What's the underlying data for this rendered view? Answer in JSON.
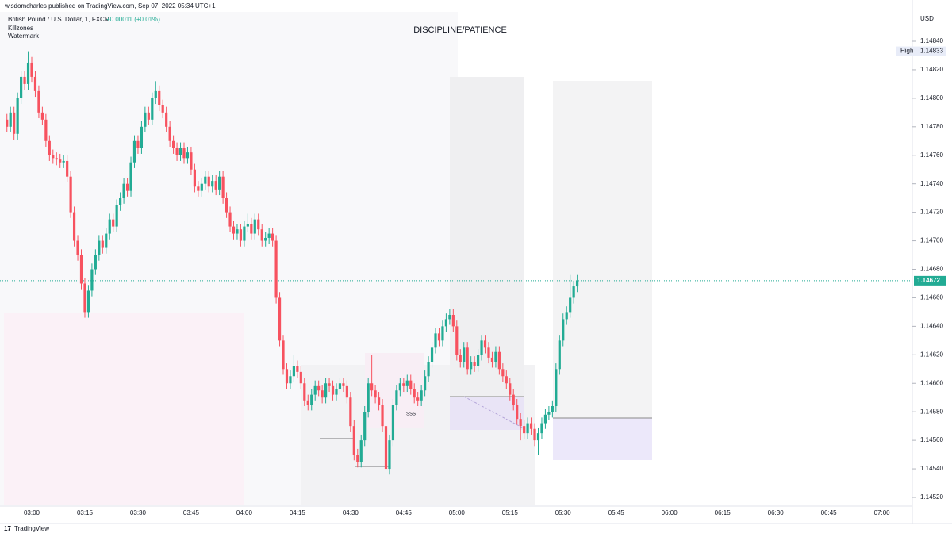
{
  "header": {
    "publisher": "wisdomcharles published on TradingView.com, Sep 07, 2022 05:34 UTC+1",
    "symbol": "British Pound / U.S. Dollar, 1, FXCM",
    "change": "+0.00011 (+0.01%)",
    "indicators": [
      "Killzones",
      "Watermark"
    ]
  },
  "footer": "TradingView",
  "chart_data": {
    "type": "candlestick",
    "title": "DISCIPLINE/PATIENCE",
    "currency": "USD",
    "up_color": "#22ab94",
    "down_color": "#f7525f",
    "high_label": "High",
    "high_value": 1.14833,
    "current_price": 1.14672,
    "annotation": "SSS",
    "ylim": [
      1.14512,
      1.14848
    ],
    "yticks": [
      {
        "value": 1.1484,
        "label": "1.14840"
      },
      {
        "value": 1.1482,
        "label": "1.14820"
      },
      {
        "value": 1.148,
        "label": "1.14800"
      },
      {
        "value": 1.1478,
        "label": "1.14780"
      },
      {
        "value": 1.1476,
        "label": "1.14760"
      },
      {
        "value": 1.1474,
        "label": "1.14740"
      },
      {
        "value": 1.1472,
        "label": "1.14720"
      },
      {
        "value": 1.147,
        "label": "1.14700"
      },
      {
        "value": 1.1468,
        "label": "1.14680"
      },
      {
        "value": 1.1466,
        "label": "1.14660"
      },
      {
        "value": 1.1464,
        "label": "1.14640"
      },
      {
        "value": 1.1462,
        "label": "1.14620"
      },
      {
        "value": 1.146,
        "label": "1.14600"
      },
      {
        "value": 1.1458,
        "label": "1.14580"
      },
      {
        "value": 1.1456,
        "label": "1.14560"
      },
      {
        "value": 1.1454,
        "label": "1.14540"
      },
      {
        "value": 1.1452,
        "label": "1.14520"
      }
    ],
    "xticks": [
      "03:00",
      "03:15",
      "03:30",
      "03:45",
      "04:00",
      "04:15",
      "04:30",
      "04:45",
      "05:00",
      "05:15",
      "05:30",
      "05:45",
      "06:00",
      "06:15",
      "06:30",
      "06:45",
      "07:00"
    ],
    "candles": [
      [
        1.14785,
        1.14789,
        1.14776,
        1.1478
      ],
      [
        1.1478,
        1.14794,
        1.14776,
        1.1479
      ],
      [
        1.1479,
        1.14794,
        1.14771,
        1.14775
      ],
      [
        1.14775,
        1.14804,
        1.14771,
        1.148
      ],
      [
        1.148,
        1.14819,
        1.14796,
        1.14815
      ],
      [
        1.14815,
        1.14819,
        1.14806,
        1.1481
      ],
      [
        1.1481,
        1.14833,
        1.14806,
        1.14825
      ],
      [
        1.14825,
        1.14829,
        1.14811,
        1.14815
      ],
      [
        1.14815,
        1.14819,
        1.14801,
        1.14805
      ],
      [
        1.14805,
        1.14809,
        1.14786,
        1.1479
      ],
      [
        1.1479,
        1.14794,
        1.14781,
        1.14785
      ],
      [
        1.14785,
        1.14789,
        1.14766,
        1.1477
      ],
      [
        1.1477,
        1.14774,
        1.14756,
        1.1476
      ],
      [
        1.1476,
        1.14764,
        1.14754,
        1.14758
      ],
      [
        1.14758,
        1.14762,
        1.14753,
        1.14757
      ],
      [
        1.14757,
        1.14761,
        1.14751,
        1.14755
      ],
      [
        1.14755,
        1.1476,
        1.14751,
        1.14756
      ],
      [
        1.14756,
        1.1476,
        1.14741,
        1.14745
      ],
      [
        1.14745,
        1.14749,
        1.14716,
        1.1472
      ],
      [
        1.1472,
        1.14724,
        1.14696,
        1.147
      ],
      [
        1.147,
        1.14704,
        1.14686,
        1.1469
      ],
      [
        1.1469,
        1.14694,
        1.14666,
        1.1467
      ],
      [
        1.1467,
        1.14674,
        1.14646,
        1.1465
      ],
      [
        1.1465,
        1.14669,
        1.14646,
        1.14665
      ],
      [
        1.14665,
        1.14684,
        1.14661,
        1.1468
      ],
      [
        1.1468,
        1.14694,
        1.14676,
        1.1469
      ],
      [
        1.1469,
        1.14704,
        1.14686,
        1.147
      ],
      [
        1.147,
        1.14704,
        1.14691,
        1.14695
      ],
      [
        1.14695,
        1.14709,
        1.14691,
        1.14705
      ],
      [
        1.14705,
        1.14719,
        1.14701,
        1.14715
      ],
      [
        1.14715,
        1.14719,
        1.14706,
        1.1471
      ],
      [
        1.1471,
        1.14729,
        1.14706,
        1.14725
      ],
      [
        1.14725,
        1.14734,
        1.14721,
        1.1473
      ],
      [
        1.1473,
        1.14744,
        1.14726,
        1.1474
      ],
      [
        1.1474,
        1.14744,
        1.14731,
        1.14735
      ],
      [
        1.14735,
        1.14759,
        1.14731,
        1.14755
      ],
      [
        1.14755,
        1.14774,
        1.14751,
        1.1477
      ],
      [
        1.1477,
        1.14774,
        1.14761,
        1.14765
      ],
      [
        1.14765,
        1.14784,
        1.14761,
        1.1478
      ],
      [
        1.1478,
        1.14794,
        1.14776,
        1.1479
      ],
      [
        1.1479,
        1.14794,
        1.14781,
        1.14785
      ],
      [
        1.14785,
        1.14804,
        1.14781,
        1.148
      ],
      [
        1.148,
        1.14812,
        1.14796,
        1.14805
      ],
      [
        1.14805,
        1.14809,
        1.14791,
        1.14795
      ],
      [
        1.14795,
        1.14799,
        1.14786,
        1.1479
      ],
      [
        1.1479,
        1.14794,
        1.14776,
        1.1478
      ],
      [
        1.1478,
        1.14784,
        1.14766,
        1.1477
      ],
      [
        1.1477,
        1.14774,
        1.14761,
        1.14765
      ],
      [
        1.14765,
        1.14769,
        1.14756,
        1.1476
      ],
      [
        1.1476,
        1.14769,
        1.14756,
        1.14765
      ],
      [
        1.14765,
        1.14769,
        1.14754,
        1.14758
      ],
      [
        1.14758,
        1.14766,
        1.14754,
        1.14762
      ],
      [
        1.14762,
        1.14766,
        1.14746,
        1.1475
      ],
      [
        1.1475,
        1.14754,
        1.14734,
        1.14738
      ],
      [
        1.14738,
        1.14742,
        1.14731,
        1.14735
      ],
      [
        1.14735,
        1.14744,
        1.14731,
        1.1474
      ],
      [
        1.1474,
        1.14749,
        1.14736,
        1.14745
      ],
      [
        1.14745,
        1.14749,
        1.14734,
        1.14738
      ],
      [
        1.14738,
        1.14746,
        1.14734,
        1.14742
      ],
      [
        1.14742,
        1.14746,
        1.14732,
        1.14736
      ],
      [
        1.14736,
        1.14749,
        1.14732,
        1.14745
      ],
      [
        1.14745,
        1.14749,
        1.14726,
        1.1473
      ],
      [
        1.1473,
        1.14734,
        1.14716,
        1.1472
      ],
      [
        1.1472,
        1.14724,
        1.14706,
        1.1471
      ],
      [
        1.1471,
        1.14714,
        1.14701,
        1.14705
      ],
      [
        1.14705,
        1.14712,
        1.14701,
        1.14708
      ],
      [
        1.14708,
        1.14712,
        1.14696,
        1.147
      ],
      [
        1.147,
        1.14714,
        1.14696,
        1.1471
      ],
      [
        1.1471,
        1.14719,
        1.14706,
        1.14712
      ],
      [
        1.14712,
        1.14716,
        1.14701,
        1.14705
      ],
      [
        1.14705,
        1.14719,
        1.14701,
        1.14715
      ],
      [
        1.14715,
        1.14719,
        1.14704,
        1.14708
      ],
      [
        1.14708,
        1.14712,
        1.14696,
        1.147
      ],
      [
        1.147,
        1.14706,
        1.14696,
        1.14702
      ],
      [
        1.14702,
        1.14709,
        1.14698,
        1.14705
      ],
      [
        1.14705,
        1.14709,
        1.14696,
        1.147
      ],
      [
        1.147,
        1.14704,
        1.14656,
        1.1466
      ],
      [
        1.1466,
        1.14664,
        1.14626,
        1.1463
      ],
      [
        1.1463,
        1.14634,
        1.14606,
        1.1461
      ],
      [
        1.1461,
        1.14614,
        1.14596,
        1.146
      ],
      [
        1.146,
        1.14609,
        1.14596,
        1.14605
      ],
      [
        1.14605,
        1.1462,
        1.14601,
        1.14612
      ],
      [
        1.14612,
        1.14616,
        1.14604,
        1.14608
      ],
      [
        1.14608,
        1.14612,
        1.14596,
        1.146
      ],
      [
        1.146,
        1.14604,
        1.14584,
        1.14588
      ],
      [
        1.14588,
        1.14592,
        1.14581,
        1.14585
      ],
      [
        1.14585,
        1.14596,
        1.14581,
        1.14592
      ],
      [
        1.14592,
        1.14602,
        1.14588,
        1.14598
      ],
      [
        1.14598,
        1.14602,
        1.14591,
        1.14595
      ],
      [
        1.14595,
        1.14599,
        1.14586,
        1.1459
      ],
      [
        1.1459,
        1.14604,
        1.14586,
        1.146
      ],
      [
        1.146,
        1.14604,
        1.14594,
        1.14598
      ],
      [
        1.14598,
        1.14602,
        1.14588,
        1.14592
      ],
      [
        1.14592,
        1.146,
        1.14588,
        1.14596
      ],
      [
        1.14596,
        1.14604,
        1.14592,
        1.146
      ],
      [
        1.146,
        1.14604,
        1.14594,
        1.14598
      ],
      [
        1.14598,
        1.14602,
        1.14586,
        1.1459
      ],
      [
        1.1459,
        1.14594,
        1.14566,
        1.1457
      ],
      [
        1.1457,
        1.14574,
        1.14546,
        1.1455
      ],
      [
        1.1455,
        1.14554,
        1.14541,
        1.14545
      ],
      [
        1.14545,
        1.14564,
        1.14541,
        1.1456
      ],
      [
        1.1456,
        1.14584,
        1.14556,
        1.1458
      ],
      [
        1.1458,
        1.14604,
        1.14576,
        1.146
      ],
      [
        1.146,
        1.1462,
        1.14591,
        1.14595
      ],
      [
        1.14595,
        1.14599,
        1.14586,
        1.1459
      ],
      [
        1.1459,
        1.14594,
        1.14581,
        1.14585
      ],
      [
        1.14585,
        1.14589,
        1.14566,
        1.1457
      ],
      [
        1.1457,
        1.14574,
        1.14515,
        1.1454
      ],
      [
        1.1454,
        1.14564,
        1.14536,
        1.1456
      ],
      [
        1.1456,
        1.14589,
        1.14556,
        1.14585
      ],
      [
        1.14585,
        1.14599,
        1.14581,
        1.14595
      ],
      [
        1.14595,
        1.14604,
        1.14591,
        1.146
      ],
      [
        1.146,
        1.14604,
        1.14594,
        1.14598
      ],
      [
        1.14598,
        1.14606,
        1.14594,
        1.14602
      ],
      [
        1.14602,
        1.14606,
        1.14592,
        1.14596
      ],
      [
        1.14596,
        1.146,
        1.14586,
        1.1459
      ],
      [
        1.1459,
        1.14594,
        1.14584,
        1.14588
      ],
      [
        1.14588,
        1.14599,
        1.14584,
        1.14595
      ],
      [
        1.14595,
        1.14609,
        1.14591,
        1.14605
      ],
      [
        1.14605,
        1.14619,
        1.14601,
        1.14615
      ],
      [
        1.14615,
        1.14629,
        1.14611,
        1.14625
      ],
      [
        1.14625,
        1.14639,
        1.14621,
        1.14635
      ],
      [
        1.14635,
        1.14639,
        1.14626,
        1.1463
      ],
      [
        1.1463,
        1.14644,
        1.14626,
        1.1464
      ],
      [
        1.1464,
        1.14649,
        1.14636,
        1.14645
      ],
      [
        1.14645,
        1.14652,
        1.14641,
        1.14648
      ],
      [
        1.14648,
        1.14652,
        1.14636,
        1.1464
      ],
      [
        1.1464,
        1.14644,
        1.14616,
        1.1462
      ],
      [
        1.1462,
        1.14624,
        1.14611,
        1.14615
      ],
      [
        1.14615,
        1.14629,
        1.14611,
        1.14625
      ],
      [
        1.14625,
        1.14629,
        1.14606,
        1.1461
      ],
      [
        1.1461,
        1.14619,
        1.14606,
        1.14615
      ],
      [
        1.14615,
        1.14619,
        1.14608,
        1.14612
      ],
      [
        1.14612,
        1.14624,
        1.14608,
        1.1462
      ],
      [
        1.1462,
        1.14634,
        1.14616,
        1.1463
      ],
      [
        1.1463,
        1.14634,
        1.14621,
        1.14625
      ],
      [
        1.14625,
        1.14629,
        1.14614,
        1.14618
      ],
      [
        1.14618,
        1.14622,
        1.14611,
        1.14615
      ],
      [
        1.14615,
        1.14626,
        1.14611,
        1.14622
      ],
      [
        1.14622,
        1.14626,
        1.14606,
        1.1461
      ],
      [
        1.1461,
        1.14614,
        1.14601,
        1.14605
      ],
      [
        1.14605,
        1.14609,
        1.14596,
        1.146
      ],
      [
        1.146,
        1.14604,
        1.14588,
        1.14592
      ],
      [
        1.14592,
        1.14596,
        1.14581,
        1.14585
      ],
      [
        1.14585,
        1.14589,
        1.14571,
        1.14575
      ],
      [
        1.14575,
        1.14579,
        1.1456,
        1.1457
      ],
      [
        1.1457,
        1.14574,
        1.14561,
        1.14565
      ],
      [
        1.14565,
        1.14576,
        1.14561,
        1.14572
      ],
      [
        1.14572,
        1.14576,
        1.14564,
        1.14568
      ],
      [
        1.14568,
        1.14572,
        1.14556,
        1.1456
      ],
      [
        1.1456,
        1.14569,
        1.1455,
        1.14565
      ],
      [
        1.14565,
        1.14576,
        1.14561,
        1.14572
      ],
      [
        1.14572,
        1.14582,
        1.14568,
        1.14578
      ],
      [
        1.14578,
        1.14584,
        1.14574,
        1.1458
      ],
      [
        1.1458,
        1.14588,
        1.14576,
        1.14584
      ],
      [
        1.14584,
        1.14614,
        1.1458,
        1.1461
      ],
      [
        1.1461,
        1.14634,
        1.14606,
        1.1463
      ],
      [
        1.1463,
        1.14649,
        1.14626,
        1.14645
      ],
      [
        1.14645,
        1.14654,
        1.14641,
        1.1465
      ],
      [
        1.1465,
        1.14676,
        1.14646,
        1.1466
      ],
      [
        1.1466,
        1.14672,
        1.14656,
        1.14668
      ],
      [
        1.14668,
        1.14676,
        1.14664,
        1.14672
      ]
    ]
  }
}
